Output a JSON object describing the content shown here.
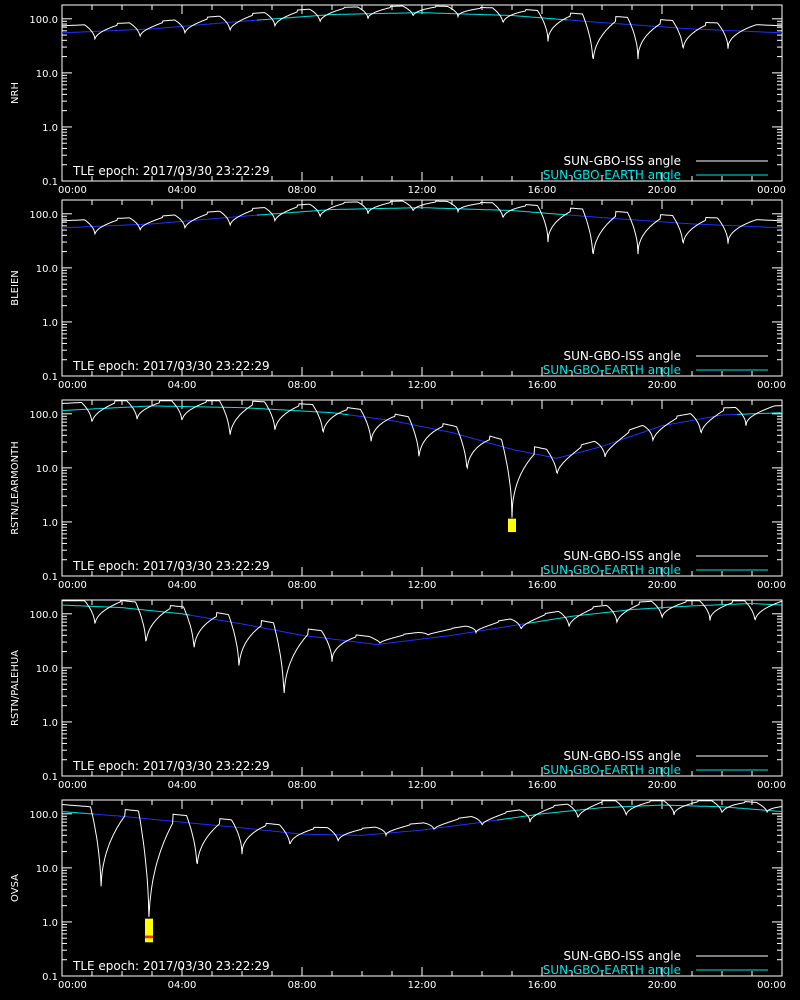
{
  "figure": {
    "epoch_text": "TLE epoch: 2017/03/30 23:22:29",
    "legend": [
      "SUN-GBO-ISS angle",
      "SUN-GBO-EARTH angle"
    ],
    "legend_colors": [
      "#ffffff",
      "#00e5e5"
    ],
    "earth_color_in_view": "#00e5e5",
    "earth_color_hidden": "#1a33ff",
    "iss_color": "#ffffff",
    "iss_color_hidden": "#888888"
  },
  "chart_data": [
    {
      "type": "line",
      "station": "NRH",
      "ylabel": "NRH",
      "yscale": "log",
      "ylim": [
        0.1,
        180
      ],
      "xlim": [
        0,
        24
      ],
      "x_ticks": [
        "00:00",
        "04:00",
        "08:00",
        "12:00",
        "16:00",
        "20:00",
        "00:00"
      ],
      "y_ticks": [
        "0.1",
        "1.0",
        "10.0",
        "100.0"
      ],
      "earth_angle": {
        "x": [
          0,
          3,
          6,
          9,
          12,
          15,
          18,
          21,
          24
        ],
        "y": [
          55,
          65,
          90,
          120,
          130,
          115,
          85,
          65,
          55
        ]
      },
      "earth_visible_range": [
        6.5,
        16.8
      ],
      "iss_minima": {
        "x": [
          1.1,
          2.6,
          4.1,
          5.6,
          7.1,
          8.6,
          10.2,
          11.7,
          13.2,
          14.7,
          16.2,
          17.7,
          19.2,
          20.7,
          22.2
        ],
        "y": [
          40,
          45,
          52,
          58,
          70,
          85,
          100,
          110,
          110,
          80,
          38,
          14,
          18,
          25,
          28
        ]
      },
      "marker": null
    },
    {
      "type": "line",
      "station": "BLEIEN",
      "ylabel": "BLEIEN",
      "yscale": "log",
      "ylim": [
        0.1,
        180
      ],
      "xlim": [
        0,
        24
      ],
      "x_ticks": [
        "00:00",
        "04:00",
        "08:00",
        "12:00",
        "16:00",
        "20:00",
        "00:00"
      ],
      "y_ticks": [
        "0.1",
        "1.0",
        "10.0",
        "100.0"
      ],
      "earth_angle": {
        "x": [
          0,
          3,
          6,
          9,
          12,
          15,
          18,
          21,
          24
        ],
        "y": [
          55,
          65,
          90,
          120,
          130,
          115,
          85,
          65,
          55
        ]
      },
      "earth_visible_range": [
        6.5,
        16.8
      ],
      "iss_minima": {
        "x": [
          1.1,
          2.6,
          4.1,
          5.6,
          7.1,
          8.6,
          10.2,
          11.7,
          13.2,
          14.7,
          16.2,
          17.7,
          19.2,
          20.7,
          22.2
        ],
        "y": [
          40,
          48,
          52,
          58,
          70,
          85,
          100,
          110,
          110,
          80,
          30,
          14,
          18,
          25,
          28
        ]
      },
      "marker": null
    },
    {
      "type": "line",
      "station": "RSTN/LEARMONTH",
      "ylabel": "RSTN/LEARMONTH",
      "yscale": "log",
      "ylim": [
        0.1,
        180
      ],
      "xlim": [
        0,
        24
      ],
      "x_ticks": [
        "00:00",
        "04:00",
        "08:00",
        "12:00",
        "16:00",
        "20:00",
        "00:00"
      ],
      "y_ticks": [
        "0.1",
        "1.0",
        "10.0",
        "100.0"
      ],
      "earth_angle": {
        "x": [
          0,
          3,
          6,
          9,
          11,
          13,
          15,
          16.5,
          18,
          20,
          22,
          24
        ],
        "y": [
          115,
          140,
          130,
          105,
          75,
          45,
          22,
          15,
          25,
          60,
          95,
          105
        ]
      },
      "earth_visible_range": [
        -1,
        9.5
      ],
      "earth_visible_range2": [
        22.5,
        25
      ],
      "iss_minima": {
        "x": [
          1.0,
          2.5,
          4.0,
          5.6,
          7.1,
          8.7,
          10.3,
          11.9,
          13.5,
          15.0,
          16.5,
          18.1,
          19.7,
          21.3,
          22.8
        ],
        "y": [
          65,
          75,
          70,
          35,
          45,
          40,
          28,
          14,
          8,
          1.2,
          7,
          15,
          30,
          40,
          60
        ]
      },
      "marker": {
        "x": 15.0,
        "y_low": 0.65,
        "y_high": 1.15,
        "color": "#ffff00"
      }
    },
    {
      "type": "line",
      "station": "RSTN/PALEHUA",
      "ylabel": "RSTN/PALEHUA",
      "yscale": "log",
      "ylim": [
        0.1,
        180
      ],
      "xlim": [
        0,
        24
      ],
      "x_ticks": [
        "00:00",
        "04:00",
        "08:00",
        "12:00",
        "16:00",
        "20:00",
        "00:00"
      ],
      "y_ticks": [
        "0.1",
        "1.0",
        "10.0",
        "100.0"
      ],
      "earth_angle": {
        "x": [
          0,
          2,
          4,
          6,
          8,
          10.5,
          13,
          15,
          17,
          19,
          21,
          23,
          24
        ],
        "y": [
          145,
          130,
          100,
          65,
          40,
          27,
          40,
          60,
          90,
          120,
          140,
          155,
          145
        ]
      },
      "earth_visible_range": [
        -1,
        4.2
      ],
      "earth_visible_range2": [
        15.5,
        25
      ],
      "iss_minima": {
        "x": [
          1.1,
          2.8,
          4.4,
          5.9,
          7.4,
          9.0,
          10.6,
          12.2,
          13.8,
          15.3,
          16.9,
          18.5,
          20.0,
          21.6,
          23.1
        ],
        "y": [
          60,
          25,
          20,
          9,
          2.5,
          13,
          28,
          40,
          45,
          50,
          55,
          65,
          80,
          75,
          70
        ]
      },
      "marker": null
    },
    {
      "type": "line",
      "station": "OVSA",
      "ylabel": "OVSA",
      "yscale": "log",
      "ylim": [
        0.1,
        180
      ],
      "xlim": [
        0,
        24
      ],
      "x_ticks": [
        "00:00",
        "04:00",
        "08:00",
        "12:00",
        "16:00",
        "20:00",
        "00:00"
      ],
      "y_ticks": [
        "0.1",
        "1.0",
        "10.0",
        "100.0"
      ],
      "earth_angle": {
        "x": [
          0,
          2,
          4,
          6,
          8,
          10,
          12,
          14,
          16,
          18,
          20,
          22,
          24
        ],
        "y": [
          110,
          90,
          70,
          55,
          42,
          40,
          50,
          70,
          100,
          130,
          145,
          135,
          110
        ]
      },
      "earth_visible_range": [
        -1,
        1.0
      ],
      "earth_visible_range2": [
        14.5,
        25
      ],
      "iss_minima": {
        "x": [
          1.3,
          2.9,
          4.5,
          6.0,
          7.6,
          9.2,
          10.8,
          12.4,
          14.0,
          15.6,
          17.2,
          18.8,
          20.4,
          22.0,
          23.5
        ],
        "y": [
          3.5,
          0.8,
          9,
          18,
          25,
          30,
          40,
          50,
          60,
          70,
          80,
          90,
          95,
          100,
          105
        ]
      },
      "marker": {
        "x": 2.9,
        "y_low": 0.42,
        "y_high": 1.15,
        "color": "#ffff00",
        "inner_color": "#ff2a00",
        "inner_low": 0.5,
        "inner_high": 0.56
      }
    }
  ]
}
